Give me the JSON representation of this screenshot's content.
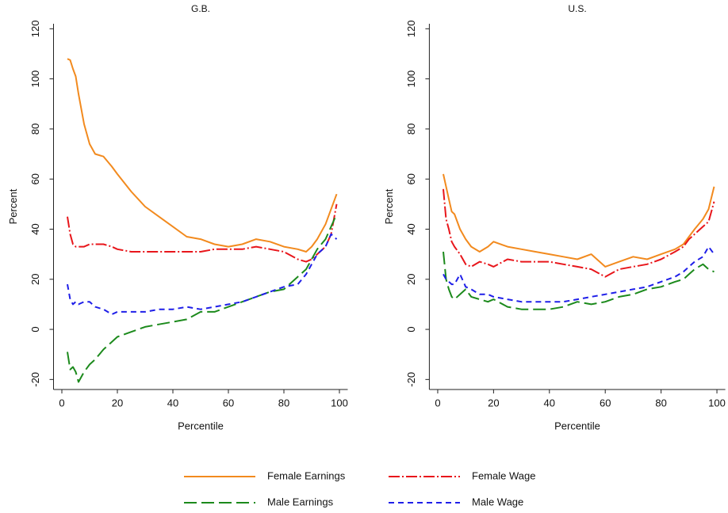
{
  "chart_data": [
    {
      "type": "line",
      "title": "G.B.",
      "xlabel": "Percentile",
      "ylabel": "Percent",
      "xlim": [
        -3,
        103
      ],
      "ylim": [
        -24,
        122
      ],
      "xticks": [
        0,
        20,
        40,
        60,
        80,
        100
      ],
      "yticks": [
        -20,
        0,
        20,
        40,
        60,
        80,
        100,
        120
      ],
      "x": [
        2,
        3,
        4,
        5,
        6,
        8,
        10,
        12,
        15,
        18,
        20,
        25,
        30,
        35,
        40,
        45,
        50,
        55,
        60,
        65,
        70,
        75,
        80,
        85,
        88,
        90,
        92,
        95,
        97,
        99
      ],
      "series": [
        {
          "name": "Female Earnings",
          "color": "#f28a1e",
          "dash": "solid",
          "values": [
            108,
            107.5,
            104,
            101,
            94,
            82,
            74,
            70,
            69,
            65,
            62,
            55,
            49,
            45,
            41,
            37,
            36,
            34,
            33,
            34,
            36,
            35,
            33,
            32,
            31,
            33,
            36,
            42,
            48,
            54
          ]
        },
        {
          "name": "Female Wage",
          "color": "#e8161b",
          "dash": "dashdot",
          "values": [
            45,
            38,
            34,
            33,
            33,
            33,
            34,
            34,
            34,
            33,
            32,
            31,
            31,
            31,
            31,
            31,
            31,
            32,
            32,
            32,
            33,
            32,
            31,
            28,
            27,
            28,
            30,
            33,
            38,
            50
          ]
        },
        {
          "name": "Male Earnings",
          "color": "#1c8a1c",
          "dash": "longdash",
          "values": [
            -9,
            -16,
            -15,
            -17,
            -21,
            -17,
            -14,
            -12,
            -8,
            -5,
            -3,
            -1,
            1,
            2,
            3,
            4,
            7,
            7,
            9,
            11,
            13,
            15,
            16,
            21,
            24,
            28,
            32,
            36,
            41,
            46
          ]
        },
        {
          "name": "Male Wage",
          "color": "#1f1fe8",
          "dash": "shortdash",
          "values": [
            18,
            12,
            10,
            11,
            10,
            11,
            11,
            9,
            8,
            6,
            7,
            7,
            7,
            8,
            8,
            9,
            8,
            9,
            10,
            11,
            13,
            15,
            17,
            18,
            22,
            26,
            30,
            33,
            38,
            36
          ]
        }
      ]
    },
    {
      "type": "line",
      "title": "U.S.",
      "xlabel": "Percentile",
      "ylabel": "Percent",
      "xlim": [
        -3,
        103
      ],
      "ylim": [
        -24,
        122
      ],
      "xticks": [
        0,
        20,
        40,
        60,
        80,
        100
      ],
      "yticks": [
        -20,
        0,
        20,
        40,
        60,
        80,
        100,
        120
      ],
      "x": [
        2,
        3,
        4,
        5,
        6,
        8,
        10,
        12,
        15,
        18,
        20,
        25,
        30,
        35,
        40,
        45,
        50,
        55,
        60,
        65,
        70,
        75,
        80,
        85,
        88,
        90,
        92,
        95,
        97,
        99
      ],
      "series": [
        {
          "name": "Female Earnings",
          "color": "#f28a1e",
          "dash": "solid",
          "values": [
            62,
            57,
            52,
            47,
            46,
            40,
            36,
            33,
            31,
            33,
            35,
            33,
            32,
            31,
            30,
            29,
            28,
            30,
            25,
            27,
            29,
            28,
            30,
            32,
            34,
            37,
            40,
            44,
            48,
            57
          ]
        },
        {
          "name": "Female Wage",
          "color": "#e8161b",
          "dash": "dashdot",
          "values": [
            56,
            44,
            40,
            35,
            33,
            30,
            26,
            25,
            27,
            26,
            25,
            28,
            27,
            27,
            27,
            26,
            25,
            24,
            21,
            24,
            25,
            26,
            28,
            31,
            33,
            36,
            38,
            41,
            43,
            51
          ]
        },
        {
          "name": "Male Earnings",
          "color": "#1c8a1c",
          "dash": "longdash",
          "values": [
            31,
            20,
            16,
            13,
            12,
            14,
            16,
            13,
            12,
            11,
            12,
            9,
            8,
            8,
            8,
            9,
            11,
            10,
            11,
            13,
            14,
            16,
            17,
            19,
            20,
            22,
            24,
            26,
            24,
            23
          ]
        },
        {
          "name": "Male Wage",
          "color": "#1f1fe8",
          "dash": "shortdash",
          "values": [
            22,
            20,
            19,
            18,
            18,
            22,
            17,
            16,
            14,
            14,
            13,
            12,
            11,
            11,
            11,
            11,
            12,
            13,
            14,
            15,
            16,
            17,
            19,
            21,
            23,
            25,
            27,
            29,
            33,
            30
          ]
        }
      ]
    }
  ]
}
